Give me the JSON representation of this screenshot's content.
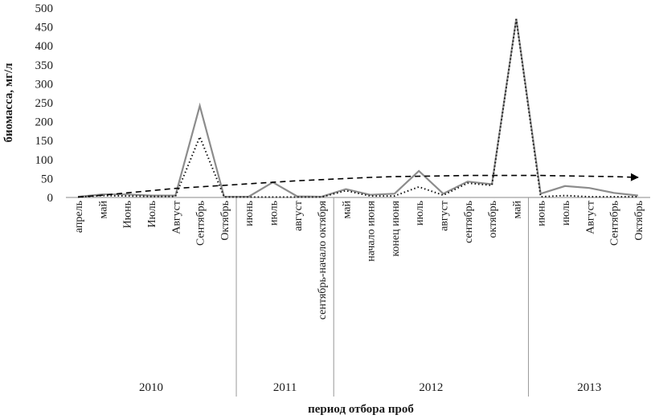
{
  "chart_data": {
    "type": "line",
    "xlabel": "период отбора проб",
    "ylabel": "биомасса, мг/л",
    "ylim": [
      0,
      500
    ],
    "yticks": [
      0,
      50,
      100,
      150,
      200,
      250,
      300,
      350,
      400,
      450,
      500
    ],
    "grid": false,
    "categories": [
      "апрель",
      "май",
      "Июнь",
      "Июль",
      "Август",
      "Сентябрь",
      "Октябрь",
      "июнь",
      "июль",
      "август",
      "сентябрь-начало октября",
      "май",
      "начало июня",
      "конец июня",
      "июль",
      "август",
      "сентябрь",
      "октябрь",
      "май",
      "июнь",
      "июль",
      "Август",
      "Сентябрь",
      "Октябрь"
    ],
    "groups": [
      {
        "label": "2010",
        "start": 0,
        "end": 6
      },
      {
        "label": "2011",
        "start": 7,
        "end": 10
      },
      {
        "label": "2012",
        "start": 11,
        "end": 18
      },
      {
        "label": "2013",
        "start": 19,
        "end": 23
      }
    ],
    "series": [
      {
        "style": "solid-gray",
        "values": [
          2,
          8,
          8,
          5,
          5,
          242,
          2,
          2,
          40,
          3,
          2,
          22,
          7,
          10,
          70,
          10,
          42,
          35,
          472,
          10,
          30,
          25,
          12,
          5
        ]
      },
      {
        "style": "dotted-black",
        "values": [
          1,
          5,
          4,
          3,
          3,
          160,
          1,
          1,
          1,
          1,
          1,
          18,
          4,
          4,
          28,
          6,
          38,
          32,
          470,
          2,
          5,
          2,
          2,
          2
        ]
      },
      {
        "style": "dashed-trend-arrow",
        "values": [
          1,
          6,
          12,
          18,
          24,
          28,
          32,
          36,
          40,
          44,
          47,
          50,
          53,
          55,
          56,
          57,
          58,
          58,
          58,
          58,
          57,
          56,
          55,
          53
        ]
      }
    ]
  }
}
